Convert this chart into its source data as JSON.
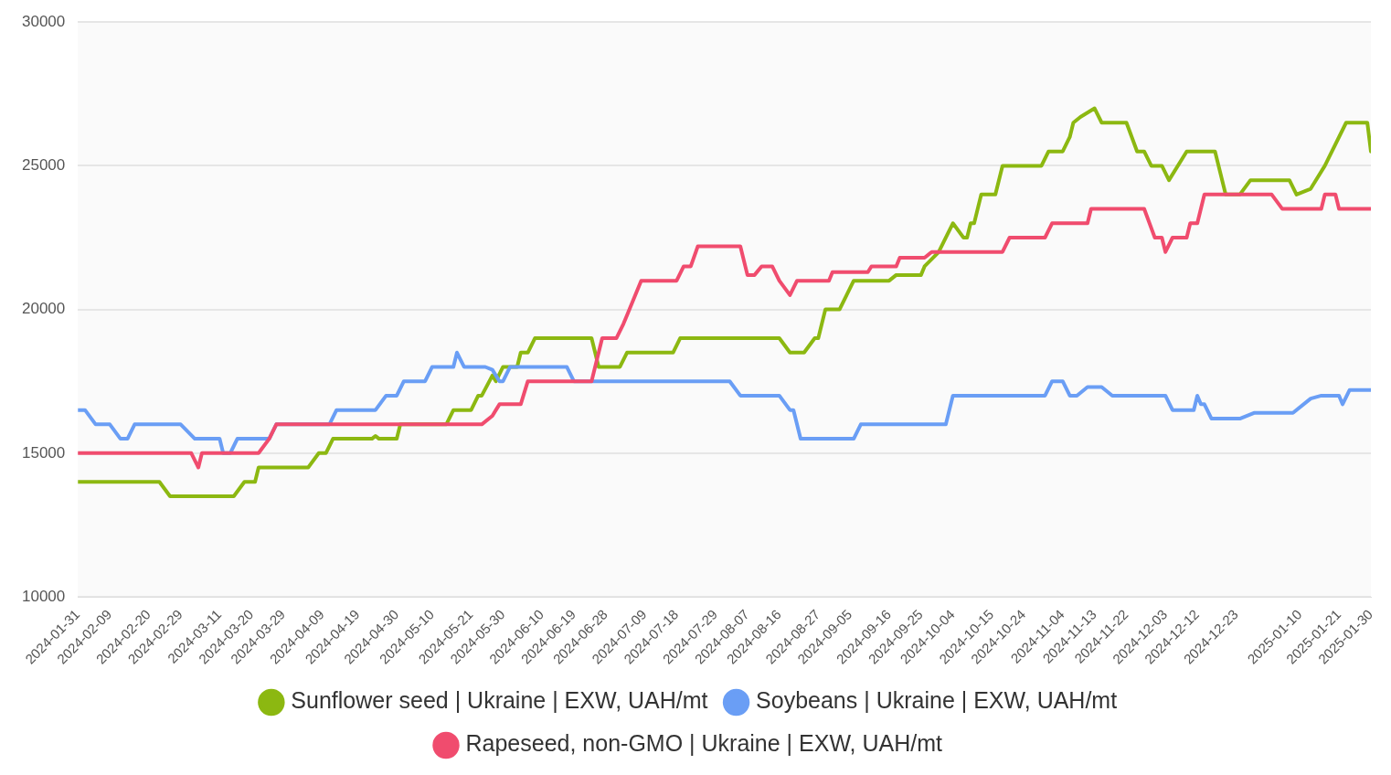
{
  "chart_data": {
    "type": "line",
    "xlim": [
      "2024-01-31",
      "2025-01-30"
    ],
    "xticks": [
      "2024-01-31",
      "2024-02-09",
      "2024-02-20",
      "2024-02-29",
      "2024-03-11",
      "2024-03-20",
      "2024-03-29",
      "2024-04-09",
      "2024-04-19",
      "2024-04-30",
      "2024-05-10",
      "2024-05-21",
      "2024-05-30",
      "2024-06-10",
      "2024-06-19",
      "2024-06-28",
      "2024-07-09",
      "2024-07-18",
      "2024-07-29",
      "2024-08-07",
      "2024-08-16",
      "2024-08-27",
      "2024-09-05",
      "2024-09-16",
      "2024-09-25",
      "2024-10-04",
      "2024-10-15",
      "2024-10-24",
      "2024-11-04",
      "2024-11-13",
      "2024-11-22",
      "2024-12-03",
      "2024-12-12",
      "2024-12-23",
      "2025-01-10",
      "2025-01-21",
      "2025-01-30"
    ],
    "ylim": [
      10000,
      30000
    ],
    "yticks": [
      10000,
      15000,
      20000,
      25000,
      30000
    ],
    "grid": "y",
    "legend": "bottom",
    "marker": "none",
    "line_style": "solid",
    "series": [
      {
        "name": "Sunflower seed | Ukraine | EXW, UAH/mt",
        "color": "#8cb811",
        "x": [
          "2024-01-31",
          "2024-02-23",
          "2024-02-26",
          "2024-03-15",
          "2024-03-18",
          "2024-03-21",
          "2024-03-22",
          "2024-04-05",
          "2024-04-08",
          "2024-04-10",
          "2024-04-12",
          "2024-04-23",
          "2024-04-24",
          "2024-04-25",
          "2024-04-30",
          "2024-05-01",
          "2024-05-14",
          "2024-05-16",
          "2024-05-21",
          "2024-05-23",
          "2024-05-24",
          "2024-05-27",
          "2024-05-28",
          "2024-05-30",
          "2024-06-03",
          "2024-06-04",
          "2024-06-06",
          "2024-06-08",
          "2024-06-24",
          "2024-06-26",
          "2024-07-02",
          "2024-07-04",
          "2024-07-17",
          "2024-07-19",
          "2024-08-16",
          "2024-08-19",
          "2024-08-23",
          "2024-08-26",
          "2024-08-27",
          "2024-08-28",
          "2024-08-29",
          "2024-09-02",
          "2024-09-04",
          "2024-09-06",
          "2024-09-16",
          "2024-09-18",
          "2024-09-25",
          "2024-09-26",
          "2024-09-30",
          "2024-10-04",
          "2024-10-07",
          "2024-10-08",
          "2024-10-09",
          "2024-10-10",
          "2024-10-11",
          "2024-10-12",
          "2024-10-16",
          "2024-10-18",
          "2024-10-29",
          "2024-10-31",
          "2024-11-04",
          "2024-11-06",
          "2024-11-07",
          "2024-11-09",
          "2024-11-13",
          "2024-11-15",
          "2024-11-22",
          "2024-11-25",
          "2024-11-27",
          "2024-11-29",
          "2024-12-02",
          "2024-12-04",
          "2024-12-09",
          "2024-12-17",
          "2024-12-20",
          "2024-12-24",
          "2024-12-27",
          "2025-01-07",
          "2025-01-09",
          "2025-01-13",
          "2025-01-17",
          "2025-01-23",
          "2025-01-29",
          "2025-01-30"
        ],
        "values": [
          14000,
          14000,
          13500,
          13500,
          14000,
          14000,
          14500,
          14500,
          15000,
          15000,
          15500,
          15500,
          15600,
          15500,
          15500,
          16000,
          16000,
          16500,
          16500,
          17000,
          17000,
          17700,
          17500,
          18000,
          18000,
          18500,
          18500,
          19000,
          19000,
          18000,
          18000,
          18500,
          18500,
          19000,
          19000,
          18500,
          18500,
          19000,
          19000,
          19500,
          20000,
          20000,
          20500,
          21000,
          21000,
          21200,
          21200,
          21500,
          22000,
          23000,
          22500,
          22500,
          23000,
          23000,
          23500,
          24000,
          24000,
          25000,
          25000,
          25500,
          25500,
          26000,
          26500,
          26700,
          27000,
          26500,
          26500,
          25500,
          25500,
          25000,
          25000,
          24500,
          25500,
          25500,
          24000,
          24000,
          24500,
          24500,
          24000,
          24200,
          25000,
          26500,
          26500,
          25500
        ]
      },
      {
        "name": "Soybeans | Ukraine | EXW, UAH/mt",
        "color": "#6a9ef5",
        "x": [
          "2024-01-31",
          "2024-02-02",
          "2024-02-05",
          "2024-02-09",
          "2024-02-12",
          "2024-02-14",
          "2024-02-16",
          "2024-02-29",
          "2024-03-04",
          "2024-03-11",
          "2024-03-12",
          "2024-03-14",
          "2024-03-16",
          "2024-03-25",
          "2024-03-27",
          "2024-04-11",
          "2024-04-13",
          "2024-04-24",
          "2024-04-27",
          "2024-04-30",
          "2024-05-02",
          "2024-05-08",
          "2024-05-10",
          "2024-05-16",
          "2024-05-17",
          "2024-05-19",
          "2024-05-25",
          "2024-05-27",
          "2024-05-29",
          "2024-05-30",
          "2024-06-01",
          "2024-06-17",
          "2024-06-19",
          "2024-08-02",
          "2024-08-05",
          "2024-08-16",
          "2024-08-19",
          "2024-08-20",
          "2024-08-22",
          "2024-09-06",
          "2024-09-08",
          "2024-10-02",
          "2024-10-04",
          "2024-10-30",
          "2024-11-01",
          "2024-11-04",
          "2024-11-06",
          "2024-11-08",
          "2024-11-11",
          "2024-11-15",
          "2024-11-18",
          "2024-12-03",
          "2024-12-05",
          "2024-12-11",
          "2024-12-12",
          "2024-12-13",
          "2024-12-14",
          "2024-12-16",
          "2024-12-24",
          "2024-12-28",
          "2025-01-08",
          "2025-01-13",
          "2025-01-16",
          "2025-01-21",
          "2025-01-22",
          "2025-01-24",
          "2025-01-30"
        ],
        "values": [
          16500,
          16500,
          16000,
          16000,
          15500,
          15500,
          16000,
          16000,
          15500,
          15500,
          15000,
          15000,
          15500,
          15500,
          16000,
          16000,
          16500,
          16500,
          17000,
          17000,
          17500,
          17500,
          18000,
          18000,
          18500,
          18000,
          18000,
          17900,
          17500,
          17500,
          18000,
          18000,
          17500,
          17500,
          17000,
          17000,
          16500,
          16500,
          15500,
          15500,
          16000,
          16000,
          17000,
          17000,
          17500,
          17500,
          17000,
          17000,
          17300,
          17300,
          17000,
          17000,
          16500,
          16500,
          17000,
          16700,
          16700,
          16200,
          16200,
          16400,
          16400,
          16900,
          17000,
          17000,
          16700,
          17200,
          17200
        ]
      },
      {
        "name": "Rapeseed, non-GMO | Ukraine | EXW, UAH/mt",
        "color": "#f04c6e",
        "x": [
          "2024-01-31",
          "2024-03-03",
          "2024-03-05",
          "2024-03-06",
          "2024-03-22",
          "2024-03-25",
          "2024-03-27",
          "2024-05-24",
          "2024-05-27",
          "2024-05-28",
          "2024-05-29",
          "2024-06-04",
          "2024-06-06",
          "2024-06-24",
          "2024-06-27",
          "2024-07-01",
          "2024-07-03",
          "2024-07-04",
          "2024-07-08",
          "2024-07-18",
          "2024-07-20",
          "2024-07-22",
          "2024-07-24",
          "2024-08-05",
          "2024-08-07",
          "2024-08-09",
          "2024-08-11",
          "2024-08-14",
          "2024-08-16",
          "2024-08-19",
          "2024-08-21",
          "2024-08-30",
          "2024-08-31",
          "2024-09-10",
          "2024-09-11",
          "2024-09-18",
          "2024-09-19",
          "2024-09-26",
          "2024-09-28",
          "2024-10-18",
          "2024-10-20",
          "2024-10-30",
          "2024-11-01",
          "2024-11-11",
          "2024-11-12",
          "2024-11-27",
          "2024-11-30",
          "2024-12-02",
          "2024-12-03",
          "2024-12-05",
          "2024-12-09",
          "2024-12-10",
          "2024-12-12",
          "2024-12-14",
          "2025-01-02",
          "2025-01-05",
          "2025-01-16",
          "2025-01-17",
          "2025-01-20",
          "2025-01-21",
          "2025-01-30"
        ],
        "values": [
          15000,
          15000,
          14500,
          15000,
          15000,
          15500,
          16000,
          16000,
          16300,
          16500,
          16700,
          16700,
          17500,
          17500,
          19000,
          19000,
          19500,
          19800,
          21000,
          21000,
          21500,
          21500,
          22200,
          22200,
          21200,
          21200,
          21500,
          21500,
          21000,
          20500,
          21000,
          21000,
          21300,
          21300,
          21500,
          21500,
          21800,
          21800,
          22000,
          22000,
          22500,
          22500,
          23000,
          23000,
          23500,
          23500,
          22500,
          22500,
          22000,
          22500,
          22500,
          23000,
          23000,
          24000,
          24000,
          23500,
          23500,
          24000,
          24000,
          23500,
          23500
        ]
      }
    ]
  }
}
